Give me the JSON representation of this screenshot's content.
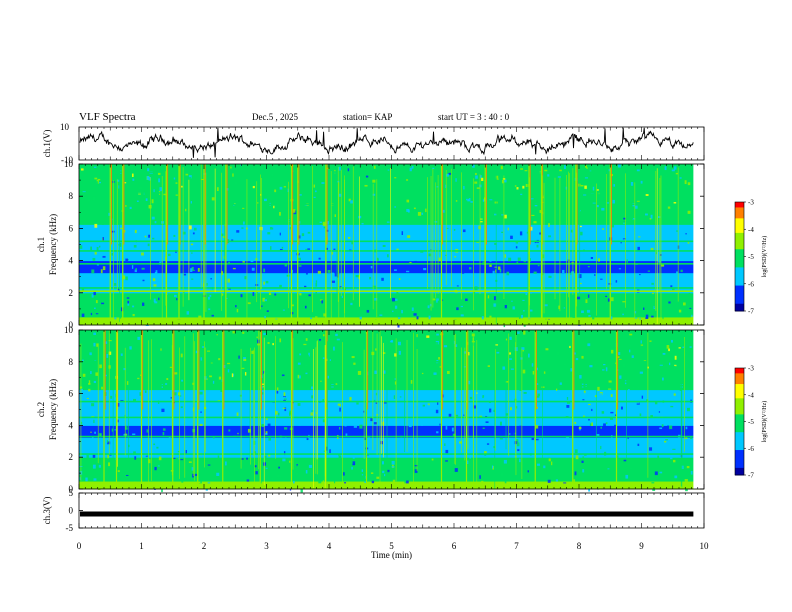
{
  "header": {
    "title": "VLF Spectra",
    "date": "Dec.5 , 2025",
    "station": "station= KAP",
    "start": "start UT = 3 : 40 : 0"
  },
  "chart_data": [
    {
      "type": "line",
      "id": "ch1-waveform",
      "ylabel": "ch.1(V)",
      "ylim": [
        -10,
        10
      ],
      "ytick_labels": [
        "10",
        "-10"
      ],
      "x_range_min": [
        0,
        9.83
      ],
      "description_values": "continuous noisy waveform oscillating roughly between -6 and +6 V with occasional spikes"
    },
    {
      "type": "heatmap",
      "id": "ch1-spectrogram",
      "ylabel": "ch.1 Frequency (kHz)",
      "ylim": [
        0,
        10
      ],
      "ytick_labels": [
        "0",
        "2",
        "4",
        "6",
        "8",
        "10"
      ],
      "colorbar": {
        "label": "log(PSD)(V²/Hz)",
        "range": [
          -7,
          -3
        ],
        "tick_labels": [
          "-3",
          "-4",
          "-5",
          "-6",
          "-7"
        ]
      },
      "bands_khz": [
        {
          "f": 2.1,
          "level": -4.6
        },
        {
          "f": 2.3,
          "level": -4.9
        },
        {
          "f": 3.8,
          "level": -5.0
        },
        {
          "f": 4.6,
          "level": -5.0
        },
        {
          "f": 5.2,
          "level": -5.0
        },
        {
          "f": 6.5,
          "level": -4.8
        },
        {
          "f": 7.5,
          "level": -5.0
        },
        {
          "f": 8.2,
          "level": -5.0
        },
        {
          "f": 9.5,
          "level": -5.0
        }
      ],
      "bursts_min": [
        0.5,
        0.7,
        1.4,
        1.6,
        2.0,
        2.35,
        3.4,
        3.5,
        3.95,
        5.8,
        6.5,
        7.2,
        7.4,
        7.95,
        8.5
      ]
    },
    {
      "type": "heatmap",
      "id": "ch2-spectrogram",
      "ylabel": "ch.2 Frequency (kHz)",
      "ylim": [
        0,
        10
      ],
      "ytick_labels": [
        "0",
        "2",
        "4",
        "6",
        "8",
        "10"
      ],
      "colorbar": {
        "label": "log(PSD)(V²/Hz)",
        "range": [
          -7,
          -3
        ],
        "tick_labels": [
          "-3",
          "-4",
          "-5",
          "-6",
          "-7"
        ]
      },
      "bands_khz": [
        {
          "f": 2.2,
          "level": -4.7
        },
        {
          "f": 3.3,
          "level": -4.9
        },
        {
          "f": 4.5,
          "level": -5.0
        },
        {
          "f": 5.5,
          "level": -5.0
        },
        {
          "f": 6.5,
          "level": -5.0
        },
        {
          "f": 8.0,
          "level": -5.0
        }
      ],
      "bursts_min": [
        0.4,
        0.6,
        1.0,
        1.5,
        1.9,
        2.3,
        2.9,
        3.4,
        3.95,
        4.6,
        5.8,
        6.2,
        7.3,
        7.9,
        8.6
      ]
    },
    {
      "type": "line",
      "id": "ch3-waveform",
      "ylabel": "ch.3(V)",
      "ylim": [
        -5,
        5
      ],
      "ytick_labels": [
        "5",
        "0",
        "-5"
      ],
      "level_v": -1.0
    }
  ],
  "xaxis": {
    "label": "Time (min)",
    "range": [
      0,
      10
    ],
    "tick_labels": [
      "0",
      "1",
      "2",
      "3",
      "4",
      "5",
      "6",
      "7",
      "8",
      "9",
      "10"
    ]
  }
}
